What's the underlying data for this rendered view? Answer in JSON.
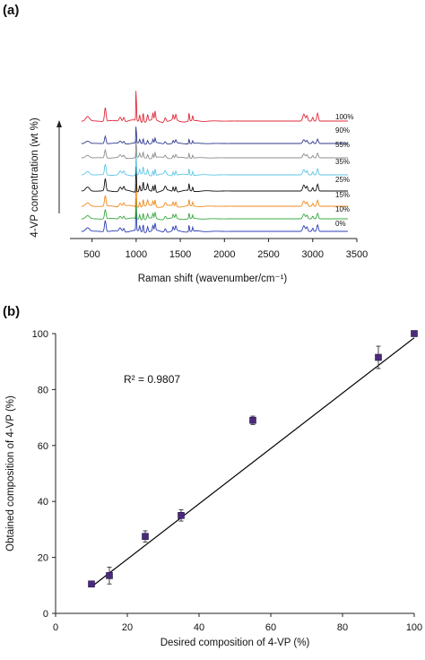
{
  "panels": {
    "a": {
      "label": "(a)"
    },
    "b": {
      "label": "(b)"
    }
  },
  "chart_data": [
    {
      "type": "line",
      "xlabel": "Raman shift (wavenumber/cm⁻¹)",
      "ylabel": "4-VP concentration (wt %)",
      "xlim": [
        250,
        3500
      ],
      "xticks": [
        500,
        1000,
        1500,
        2000,
        2500,
        3000,
        3500
      ],
      "grid": false,
      "series": [
        {
          "name": "0%",
          "color": "#2b3fb4"
        },
        {
          "name": "10%",
          "color": "#37a83f"
        },
        {
          "name": "15%",
          "color": "#f08a1d"
        },
        {
          "name": "25%",
          "color": "#111111"
        },
        {
          "name": "35%",
          "color": "#5ec6e8"
        },
        {
          "name": "55%",
          "color": "#8c8c8c"
        },
        {
          "name": "90%",
          "color": "#2f3b8f"
        },
        {
          "name": "100%",
          "color": "#e0283a"
        }
      ]
    },
    {
      "type": "scatter",
      "xlabel": "Desired composition of 4-VP (%)",
      "ylabel": "Obtained composition of 4-VP (%)",
      "xlim": [
        0,
        100
      ],
      "ylim": [
        0,
        100
      ],
      "xticks": [
        0,
        20,
        40,
        60,
        80,
        100
      ],
      "yticks": [
        0,
        20,
        40,
        60,
        80,
        100
      ],
      "grid": false,
      "points": [
        {
          "x": 10,
          "y": 10.5,
          "err": 0.8
        },
        {
          "x": 15,
          "y": 13.5,
          "err": 3.0
        },
        {
          "x": 25,
          "y": 27.5,
          "err": 2.0
        },
        {
          "x": 35,
          "y": 35.0,
          "err": 2.0
        },
        {
          "x": 55,
          "y": 69.0,
          "err": 1.5
        },
        {
          "x": 90,
          "y": 91.5,
          "err": 4.0
        },
        {
          "x": 100,
          "y": 100.0,
          "err": 0.5
        }
      ],
      "fit_line": {
        "x": [
          10,
          100
        ],
        "y": [
          9.5,
          98.5
        ]
      },
      "annotation": "R² = 0.9807",
      "marker_color": "#4b2a7a"
    }
  ]
}
